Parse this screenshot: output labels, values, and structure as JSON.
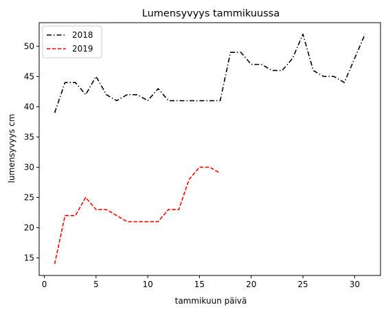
{
  "chart_data": {
    "type": "line",
    "title": "Lumensyvyys tammikuussa",
    "xlabel": "tammikuun päivä",
    "ylabel": "lumensyvyys cm",
    "xlim": [
      -0.5,
      32.5
    ],
    "ylim": [
      12.1,
      53.9
    ],
    "xticks": [
      0,
      5,
      10,
      15,
      20,
      25,
      30
    ],
    "yticks": [
      15,
      20,
      25,
      30,
      35,
      40,
      45,
      50
    ],
    "grid": false,
    "legend_position": "top-left",
    "series": [
      {
        "name": "2018",
        "color": "#000000",
        "line_style": "dash-dot",
        "x": [
          1,
          2,
          3,
          4,
          5,
          6,
          7,
          8,
          9,
          10,
          11,
          12,
          13,
          14,
          15,
          16,
          17,
          18,
          19,
          20,
          21,
          22,
          23,
          24,
          25,
          26,
          27,
          28,
          29,
          30,
          31
        ],
        "values": [
          39,
          44,
          44,
          42,
          45,
          42,
          41,
          42,
          42,
          41,
          43,
          41,
          41,
          41,
          41,
          41,
          41,
          49,
          49,
          47,
          47,
          46,
          46,
          48,
          52,
          46,
          45,
          45,
          44,
          48,
          52
        ]
      },
      {
        "name": "2019",
        "color": "#ff0000",
        "line_style": "dashed",
        "x": [
          1,
          2,
          3,
          4,
          5,
          6,
          7,
          8,
          9,
          10,
          11,
          12,
          13,
          14,
          15,
          16,
          17
        ],
        "values": [
          14,
          22,
          22,
          25,
          23,
          23,
          22,
          21,
          21,
          21,
          21,
          23,
          23,
          28,
          30,
          30,
          29
        ]
      }
    ]
  }
}
